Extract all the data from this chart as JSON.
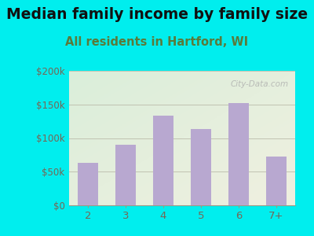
{
  "title": "Median family income by family size",
  "subtitle": "All residents in Hartford, WI",
  "categories": [
    "2",
    "3",
    "4",
    "5",
    "6",
    "7+"
  ],
  "values": [
    63000,
    90000,
    133000,
    113000,
    152000,
    72000
  ],
  "bar_color": "#b8a8d0",
  "background_outer": "#00eeee",
  "background_inner_topleft": "#daeeda",
  "background_inner_bottomright": "#f0f0e0",
  "title_color": "#111111",
  "subtitle_color": "#5a7a3a",
  "axis_label_color": "#776655",
  "ylim": [
    0,
    200000
  ],
  "yticks": [
    0,
    50000,
    100000,
    150000,
    200000
  ],
  "ytick_labels": [
    "$0",
    "$50k",
    "$100k",
    "$150k",
    "$200k"
  ],
  "title_fontsize": 13.5,
  "subtitle_fontsize": 10.5,
  "watermark": "City-Data.com"
}
